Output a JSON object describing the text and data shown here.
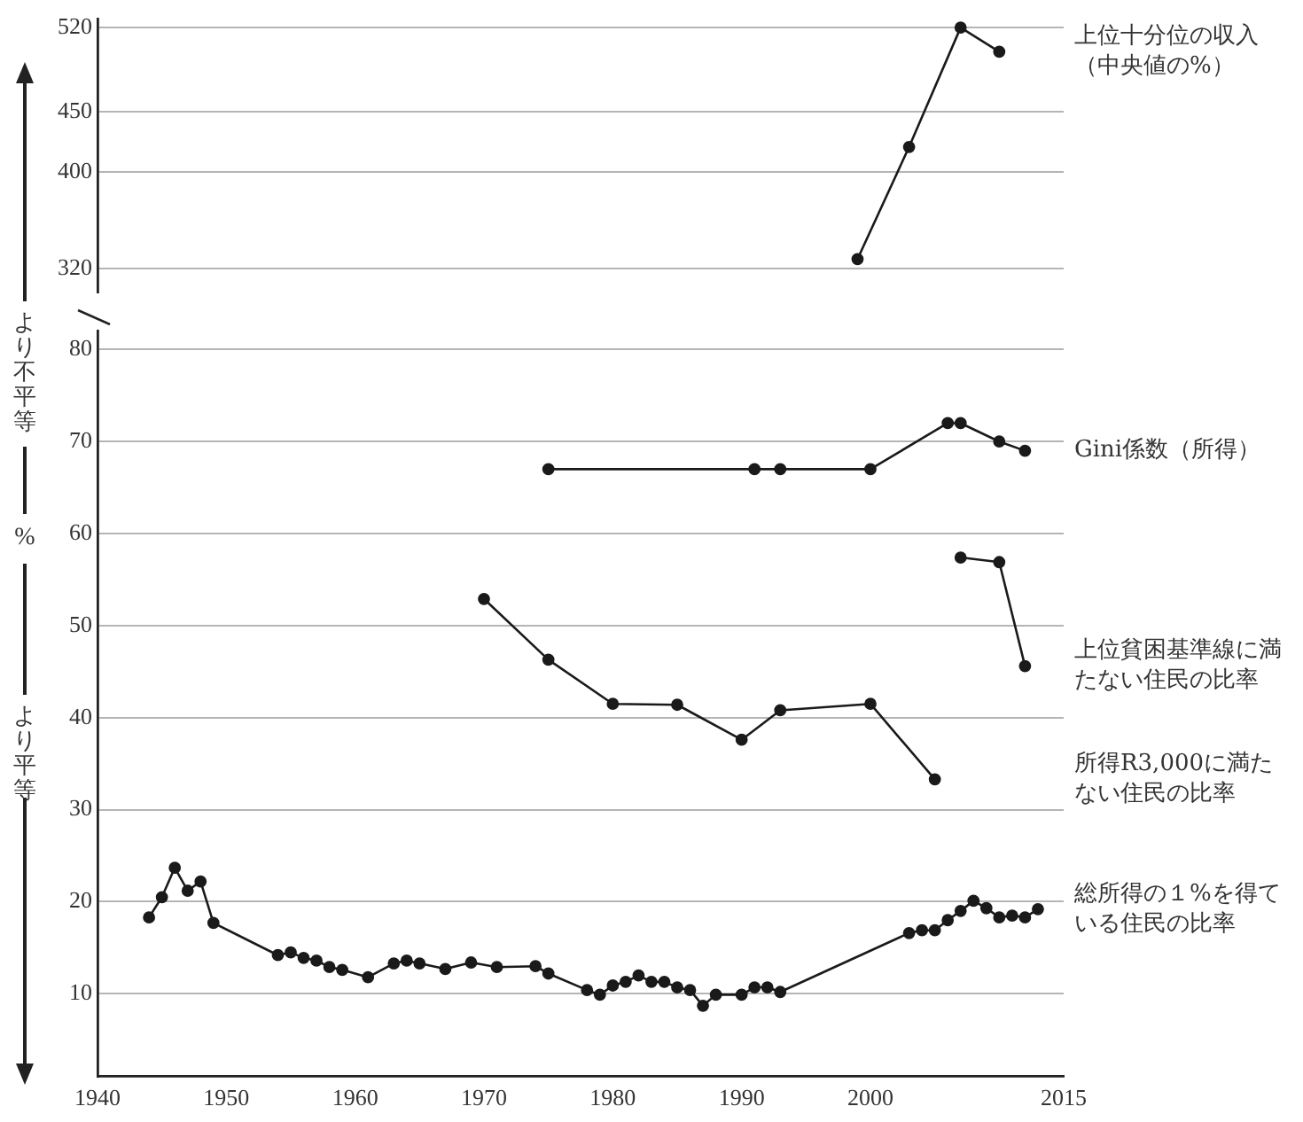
{
  "chart_data": [
    {
      "type": "line",
      "xlim": [
        1940,
        2015
      ],
      "xticks": [
        1940,
        1950,
        1960,
        1970,
        1980,
        1990,
        2000,
        2015
      ],
      "ylim": [
        300,
        527
      ],
      "yticks": [
        320,
        400,
        450,
        520
      ],
      "grid": "y",
      "legend": false,
      "marker": "circle",
      "line_style": "solid",
      "tick_labels": "y",
      "series": [
        {
          "name": "上位十分位の収入（中央値の%）",
          "color": "#1a1a1a",
          "x": [
            1999,
            2003,
            2007,
            2010
          ],
          "values": [
            328,
            421,
            520,
            500
          ]
        }
      ]
    },
    {
      "type": "line",
      "xlim": [
        1940,
        2015
      ],
      "xticks": [
        1940,
        1950,
        1960,
        1970,
        1980,
        1990,
        2000,
        2015
      ],
      "ylim": [
        1,
        82
      ],
      "yticks": [
        10,
        20,
        30,
        40,
        50,
        60,
        70,
        80
      ],
      "ylabel": "%",
      "annotations": [
        "より不平等",
        "より平等"
      ],
      "grid": "y",
      "legend": false,
      "marker": "circle",
      "line_style": "solid",
      "series": [
        {
          "name": "Gini係数（所得）",
          "color": "#1a1a1a",
          "x": [
            1975,
            1991,
            1993,
            2000,
            2006,
            2007,
            2010,
            2012
          ],
          "values": [
            67,
            67,
            67,
            67,
            72,
            72,
            70,
            69
          ]
        },
        {
          "name": "上位貧困基準線に満たない住民の比率",
          "color": "#1a1a1a",
          "x": [
            2007,
            2010,
            2012
          ],
          "values": [
            57.4,
            56.9,
            45.6
          ]
        },
        {
          "name": "所得R3,000に満たない住民の比率",
          "color": "#1a1a1a",
          "x": [
            1970,
            1975,
            1980,
            1985,
            1990,
            1993,
            2000,
            2005
          ],
          "values": [
            52.9,
            46.3,
            41.5,
            41.4,
            37.6,
            40.8,
            41.5,
            33.3
          ]
        },
        {
          "name": "総所得の１%を得ている住民の比率",
          "color": "#1a1a1a",
          "x": [
            1944,
            1945,
            1946,
            1947,
            1948,
            1949,
            1954,
            1955,
            1956,
            1957,
            1958,
            1959,
            1961,
            1963,
            1964,
            1965,
            1967,
            1969,
            1971,
            1974,
            1975,
            1978,
            1979,
            1980,
            1981,
            1982,
            1983,
            1984,
            1985,
            1986,
            1987,
            1988,
            1990,
            1991,
            1992,
            1993,
            2003,
            2004,
            2005,
            2006,
            2007,
            2008,
            2009,
            2010,
            2011,
            2012,
            2013
          ],
          "values": [
            18.3,
            20.5,
            23.7,
            21.2,
            22.2,
            17.7,
            14.2,
            14.5,
            13.9,
            13.6,
            12.9,
            12.6,
            11.8,
            13.3,
            13.6,
            13.3,
            12.7,
            13.4,
            12.9,
            13.0,
            12.2,
            10.4,
            9.9,
            10.9,
            11.3,
            12.0,
            11.3,
            11.3,
            10.7,
            10.4,
            8.7,
            9.9,
            9.9,
            10.7,
            10.7,
            10.2,
            16.6,
            16.9,
            16.9,
            18.0,
            19.0,
            20.1,
            19.3,
            18.3,
            18.5,
            18.3,
            19.2
          ]
        }
      ]
    }
  ]
}
